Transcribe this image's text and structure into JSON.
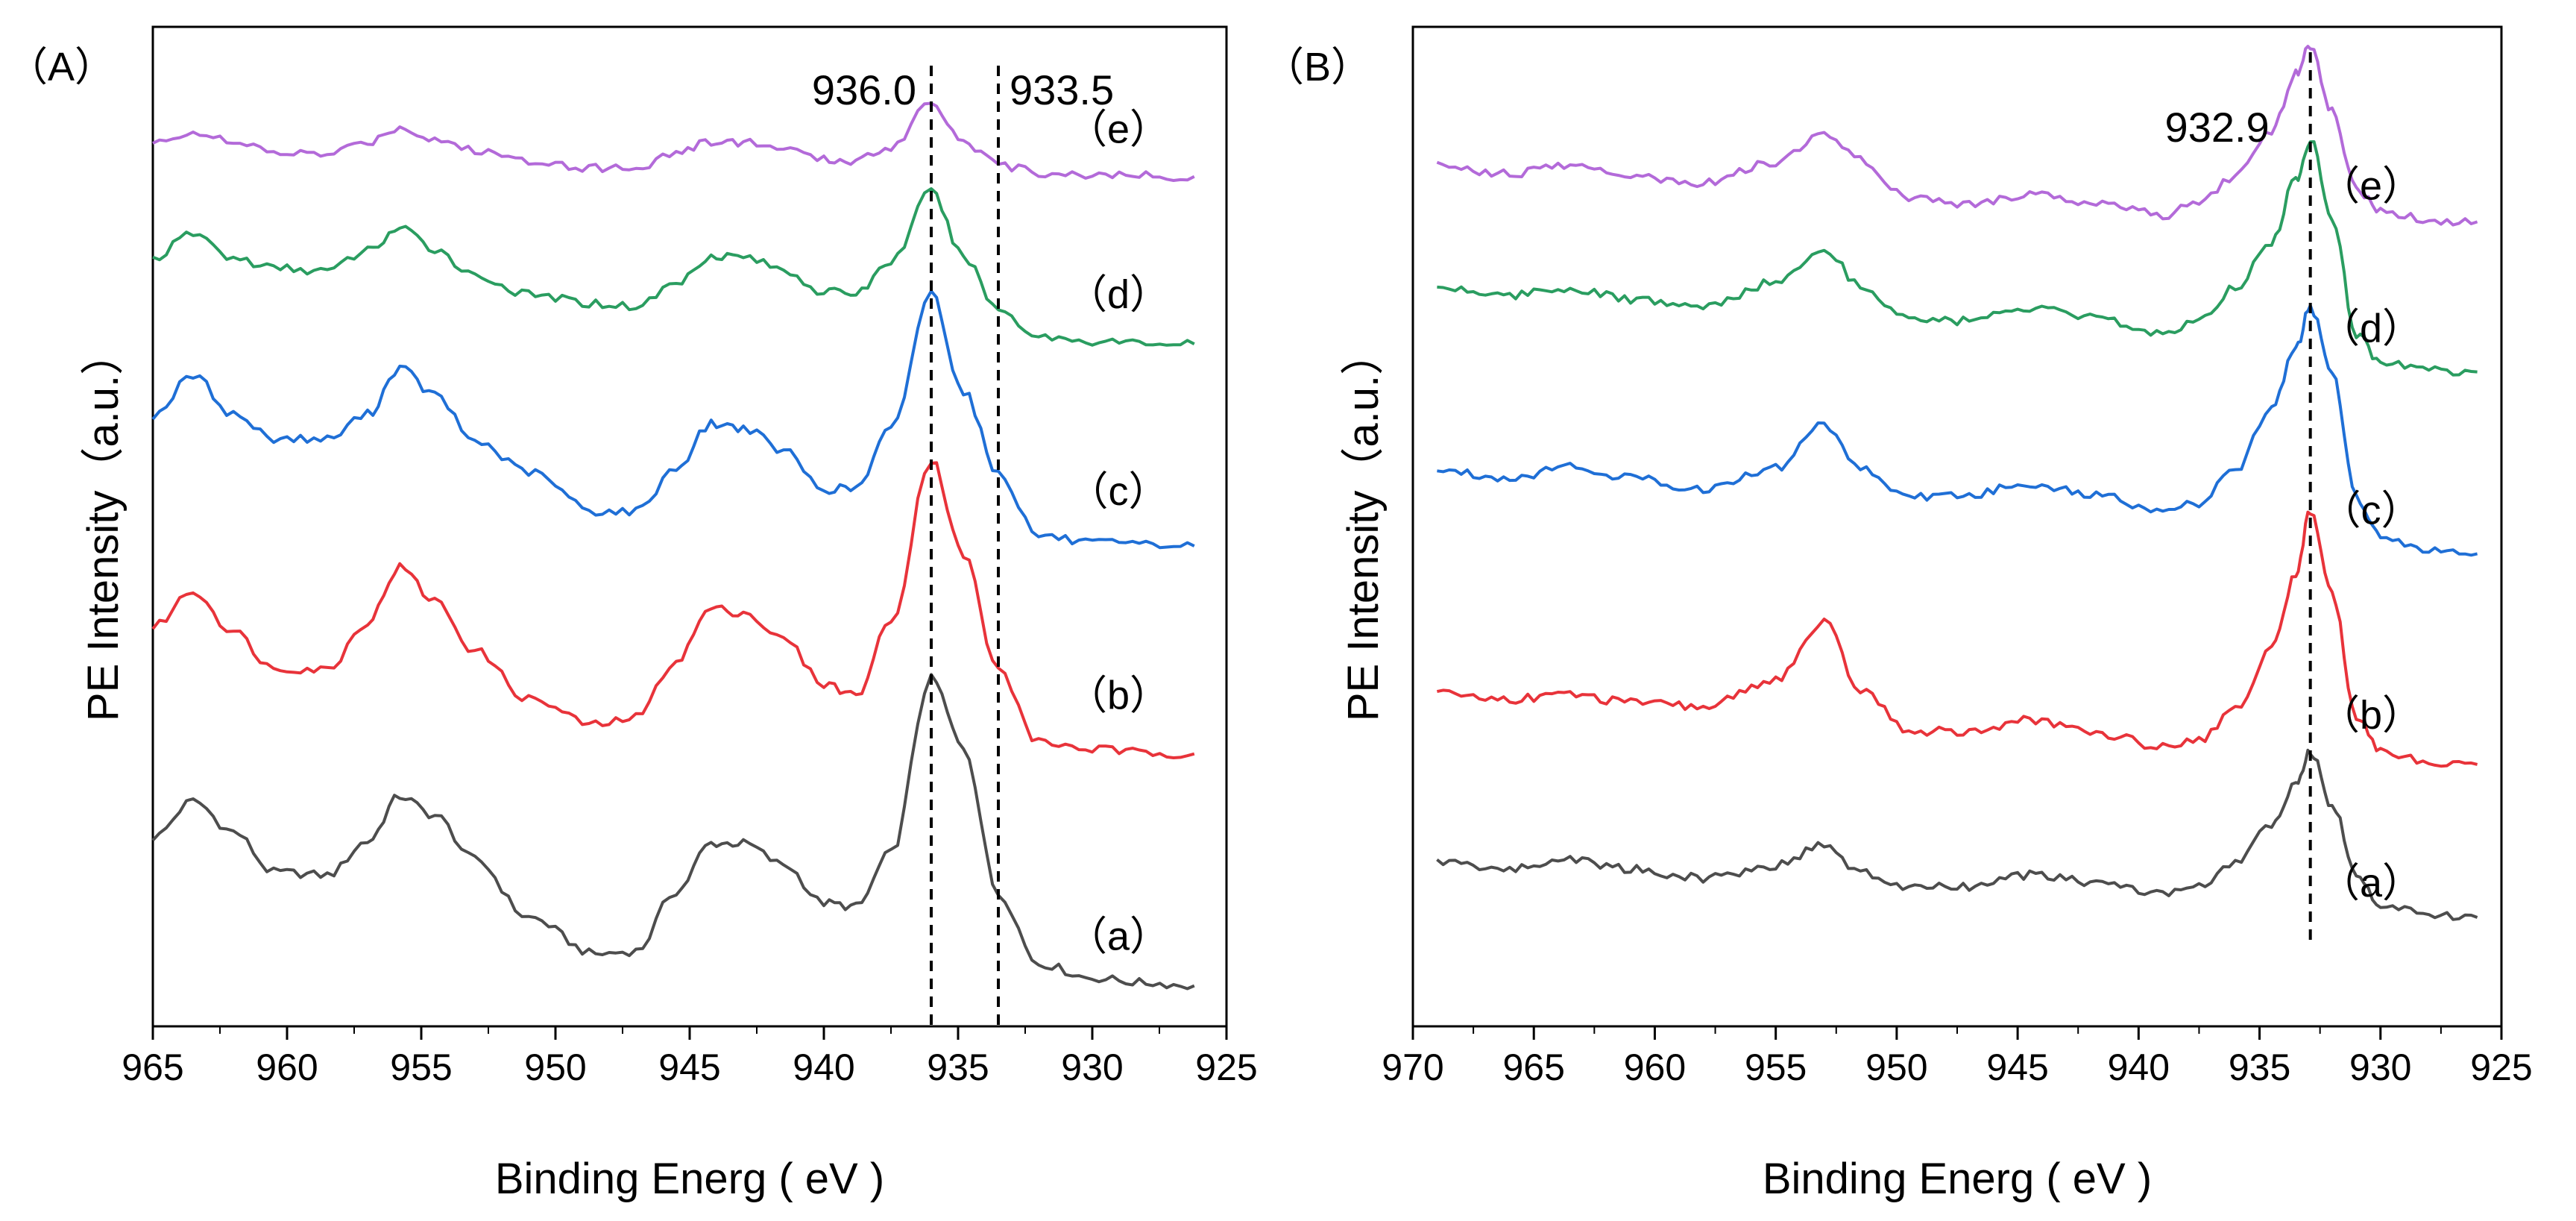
{
  "chart_data": [
    {
      "type": "line",
      "panel_label": "（A）",
      "xlabel": "Binding Energ ( eV )",
      "ylabel": "PE Intensity（a.u.）",
      "xlim": [
        965,
        925
      ],
      "ylim": [
        0,
        100
      ],
      "xticks": [
        965,
        960,
        955,
        950,
        945,
        940,
        935,
        930,
        925
      ],
      "reference_lines": [
        {
          "x": 936.0,
          "label": "936.0"
        },
        {
          "x": 933.5,
          "label": "933.5"
        }
      ],
      "series": [
        {
          "name": "(a)",
          "label": "（a）",
          "color": "#4d4d4d",
          "base": 1.0,
          "tail": 0.0,
          "points": [
            [
              965,
              17.6
            ],
            [
              963.5,
              21.4
            ],
            [
              962,
              18.2
            ],
            [
              960.5,
              14.0
            ],
            [
              958.5,
              13.7
            ],
            [
              957,
              17.2
            ],
            [
              955.8,
              21.9
            ],
            [
              954.5,
              19.9
            ],
            [
              953,
              15.3
            ],
            [
              951,
              9.3
            ],
            [
              948.5,
              5.5
            ],
            [
              947,
              5.8
            ],
            [
              945.5,
              12.0
            ],
            [
              944.2,
              17.0
            ],
            [
              943,
              17.0
            ],
            [
              941.5,
              14.8
            ],
            [
              940,
              10.8
            ],
            [
              938.8,
              10.4
            ],
            [
              937.5,
              16.0
            ],
            [
              936.0,
              34.1
            ],
            [
              934.8,
              27.0
            ],
            [
              933.5,
              11.8
            ],
            [
              932,
              4.5
            ],
            [
              930,
              3.0
            ],
            [
              928,
              2.5
            ],
            [
              926.2,
              2.2
            ]
          ]
        },
        {
          "name": "(b)",
          "label": "（b）",
          "color": "#e8333a",
          "base": 25.5,
          "tail": 25.0,
          "points": [
            [
              965,
              39.5
            ],
            [
              963.5,
              43.2
            ],
            [
              962,
              39.0
            ],
            [
              960.5,
              35.2
            ],
            [
              958.5,
              35.1
            ],
            [
              957,
              40.0
            ],
            [
              955.8,
              45.7
            ],
            [
              954.5,
              42.2
            ],
            [
              953,
              37.0
            ],
            [
              951,
              32.0
            ],
            [
              948.5,
              29.3
            ],
            [
              947,
              30.1
            ],
            [
              945.5,
              36.0
            ],
            [
              944.2,
              41.4
            ],
            [
              943,
              41.0
            ],
            [
              941.5,
              38.2
            ],
            [
              940,
              33.6
            ],
            [
              938.8,
              32.4
            ],
            [
              937.5,
              40.0
            ],
            [
              936.0,
              56.9
            ],
            [
              934.8,
              47.0
            ],
            [
              933.5,
              35.0
            ],
            [
              932,
              27.5
            ],
            [
              930,
              26.8
            ],
            [
              928,
              26.4
            ],
            [
              926.2,
              26.3
            ]
          ]
        },
        {
          "name": "(c)",
          "label": "（c）",
          "color": "#1f6fd6",
          "base": 47.0,
          "tail": 46.5,
          "points": [
            [
              965,
              61.5
            ],
            [
              963.5,
              65.6
            ],
            [
              962,
              61.6
            ],
            [
              960.5,
              59.1
            ],
            [
              958.5,
              59.0
            ],
            [
              957,
              61.6
            ],
            [
              955.8,
              66.4
            ],
            [
              954.5,
              63.6
            ],
            [
              953,
              58.8
            ],
            [
              951,
              55.6
            ],
            [
              948.5,
              51.5
            ],
            [
              947,
              51.5
            ],
            [
              945.5,
              56.0
            ],
            [
              944.2,
              60.6
            ],
            [
              943,
              60.2
            ],
            [
              941.5,
              57.8
            ],
            [
              940,
              53.8
            ],
            [
              938.8,
              53.9
            ],
            [
              937.5,
              60.0
            ],
            [
              936.0,
              74.2
            ],
            [
              934.8,
              64.0
            ],
            [
              933.5,
              55.5
            ],
            [
              932,
              49.0
            ],
            [
              930,
              48.2
            ],
            [
              928,
              48.0
            ],
            [
              926.2,
              47.9
            ]
          ]
        },
        {
          "name": "(d)",
          "label": "（d）",
          "color": "#2a9d60",
          "base": 67.5,
          "tail": 67.0,
          "points": [
            [
              965,
              77.8
            ],
            [
              963.5,
              80.4
            ],
            [
              962,
              77.8
            ],
            [
              960.5,
              76.8
            ],
            [
              958.5,
              76.5
            ],
            [
              957,
              78.6
            ],
            [
              955.8,
              80.9
            ],
            [
              954.5,
              78.8
            ],
            [
              953,
              76.0
            ],
            [
              951,
              74.0
            ],
            [
              948.5,
              73.1
            ],
            [
              947,
              72.8
            ],
            [
              945.5,
              75.2
            ],
            [
              944.2,
              78.1
            ],
            [
              943,
              78.0
            ],
            [
              941.5,
              76.6
            ],
            [
              940,
              74.3
            ],
            [
              938.8,
              74.2
            ],
            [
              937.5,
              77.5
            ],
            [
              936.0,
              84.7
            ],
            [
              934.8,
              78.0
            ],
            [
              933.5,
              72.5
            ],
            [
              932,
              69.7
            ],
            [
              930,
              69.2
            ],
            [
              928,
              69.0
            ],
            [
              926.2,
              68.9
            ]
          ]
        },
        {
          "name": "(e)",
          "label": "（e）",
          "color": "#b36ad9",
          "base": 85.5,
          "tail": 85.0,
          "points": [
            [
              965,
              89.7
            ],
            [
              963.5,
              91.0
            ],
            [
              962,
              89.8
            ],
            [
              960.5,
              88.8
            ],
            [
              958.5,
              88.6
            ],
            [
              957,
              89.9
            ],
            [
              955.8,
              91.4
            ],
            [
              954.5,
              90.2
            ],
            [
              953,
              89.0
            ],
            [
              951,
              88.0
            ],
            [
              948.5,
              87.2
            ],
            [
              947,
              87.2
            ],
            [
              945.5,
              88.8
            ],
            [
              944.2,
              89.9
            ],
            [
              943,
              89.9
            ],
            [
              941.5,
              89.2
            ],
            [
              940,
              88.0
            ],
            [
              938.8,
              88.0
            ],
            [
              937.5,
              89.4
            ],
            [
              936.0,
              94.1
            ],
            [
              934.8,
              90.0
            ],
            [
              933.5,
              87.5
            ],
            [
              932,
              86.7
            ],
            [
              930,
              86.5
            ],
            [
              928,
              86.4
            ],
            [
              926.2,
              86.3
            ]
          ]
        }
      ]
    },
    {
      "type": "line",
      "panel_label": "（B）",
      "xlabel": "Binding Energ ( eV )",
      "ylabel": "PE Intensity（a.u.）",
      "xlim": [
        970,
        925
      ],
      "ylim": [
        0,
        100
      ],
      "xticks": [
        970,
        965,
        960,
        955,
        950,
        945,
        940,
        935,
        930,
        925
      ],
      "reference_lines": [
        {
          "x": 932.9,
          "label": "932.9"
        }
      ],
      "series": [
        {
          "name": "(a)",
          "label": "（a）",
          "color": "#4d4d4d",
          "base": 8.5,
          "tail": 8.0,
          "points": [
            [
              969,
              15.1
            ],
            [
              966,
              14.3
            ],
            [
              963.5,
              15.4
            ],
            [
              961,
              14.3
            ],
            [
              958,
              13.4
            ],
            [
              955,
              14.7
            ],
            [
              953,
              16.9
            ],
            [
              951.5,
              13.9
            ],
            [
              949.5,
              12.4
            ],
            [
              947,
              12.5
            ],
            [
              944.5,
              13.7
            ],
            [
              942,
              13.0
            ],
            [
              939,
              11.8
            ],
            [
              937.5,
              12.5
            ],
            [
              936,
              14.9
            ],
            [
              934.5,
              19.0
            ],
            [
              933.5,
              23.0
            ],
            [
              932.9,
              26.6
            ],
            [
              932,
              21.0
            ],
            [
              931,
              14.0
            ],
            [
              930,
              10.5
            ],
            [
              928,
              9.6
            ],
            [
              926,
              9.3
            ]
          ]
        },
        {
          "name": "(b)",
          "label": "（b）",
          "color": "#e8333a",
          "base": 24.5,
          "tail": 24.0,
          "points": [
            [
              969,
              32.6
            ],
            [
              966,
              32.0
            ],
            [
              963.5,
              32.5
            ],
            [
              961,
              31.6
            ],
            [
              958,
              31.2
            ],
            [
              955,
              34.0
            ],
            [
              953,
              39.9
            ],
            [
              951.5,
              33.0
            ],
            [
              949.5,
              28.7
            ],
            [
              947,
              28.6
            ],
            [
              944.5,
              29.8
            ],
            [
              942,
              28.6
            ],
            [
              939,
              27.1
            ],
            [
              937.5,
              27.8
            ],
            [
              936,
              30.9
            ],
            [
              934.5,
              37.2
            ],
            [
              933.5,
              45.0
            ],
            [
              932.9,
              51.6
            ],
            [
              932,
              43.0
            ],
            [
              931,
              30.0
            ],
            [
              930,
              26.5
            ],
            [
              928,
              25.5
            ],
            [
              926,
              25.2
            ]
          ]
        },
        {
          "name": "(c)",
          "label": "（c）",
          "color": "#1f6fd6",
          "base": 46.0,
          "tail": 45.5,
          "points": [
            [
              969,
              55.8
            ],
            [
              966,
              55.0
            ],
            [
              963.5,
              56.2
            ],
            [
              961,
              55.0
            ],
            [
              958,
              53.8
            ],
            [
              955,
              56.0
            ],
            [
              953,
              60.6
            ],
            [
              951.5,
              56.0
            ],
            [
              949.5,
              53.0
            ],
            [
              947,
              53.2
            ],
            [
              944.5,
              54.4
            ],
            [
              942,
              53.3
            ],
            [
              939,
              51.7
            ],
            [
              937.5,
              52.3
            ],
            [
              936,
              55.8
            ],
            [
              934.5,
              62.2
            ],
            [
              933.5,
              68.5
            ],
            [
              932.9,
              72.7
            ],
            [
              932,
              66.0
            ],
            [
              931,
              53.0
            ],
            [
              930,
              49.0
            ],
            [
              928,
              47.6
            ],
            [
              926,
              47.1
            ]
          ]
        },
        {
          "name": "(d)",
          "label": "（d）",
          "color": "#2a9d60",
          "base": 64.5,
          "tail": 64.0,
          "points": [
            [
              969,
              74.8
            ],
            [
              966,
              74.0
            ],
            [
              963.5,
              74.7
            ],
            [
              961,
              73.5
            ],
            [
              958,
              72.7
            ],
            [
              955,
              75.3
            ],
            [
              953,
              78.9
            ],
            [
              951.5,
              75.0
            ],
            [
              949.5,
              71.5
            ],
            [
              947,
              71.3
            ],
            [
              944.5,
              72.6
            ],
            [
              942,
              71.6
            ],
            [
              939,
              70.0
            ],
            [
              937.5,
              71.5
            ],
            [
              936,
              74.8
            ],
            [
              934.5,
              79.5
            ],
            [
              933.5,
              86.0
            ],
            [
              932.9,
              90.1
            ],
            [
              932,
              82.0
            ],
            [
              931,
              70.0
            ],
            [
              930,
              67.0
            ],
            [
              928,
              66.2
            ],
            [
              926,
              66.0
            ]
          ]
        },
        {
          "name": "(e)",
          "label": "（e）",
          "color": "#b36ad9",
          "base": 80.5,
          "tail": 80.0,
          "points": [
            [
              969,
              87.4
            ],
            [
              966,
              86.6
            ],
            [
              963.5,
              87.5
            ],
            [
              961,
              86.3
            ],
            [
              958,
              85.7
            ],
            [
              955,
              87.8
            ],
            [
              953,
              91.0
            ],
            [
              951.5,
              88.0
            ],
            [
              949.5,
              84.0
            ],
            [
              947,
              83.5
            ],
            [
              944.5,
              84.5
            ],
            [
              942,
              83.7
            ],
            [
              939,
              82.3
            ],
            [
              937.5,
              83.5
            ],
            [
              936,
              86.3
            ],
            [
              934.5,
              91.0
            ],
            [
              933.5,
              97.0
            ],
            [
              932.9,
              100.0
            ],
            [
              932,
              93.0
            ],
            [
              931,
              85.0
            ],
            [
              930,
              82.8
            ],
            [
              928,
              81.8
            ],
            [
              926,
              81.6
            ]
          ]
        }
      ]
    }
  ]
}
